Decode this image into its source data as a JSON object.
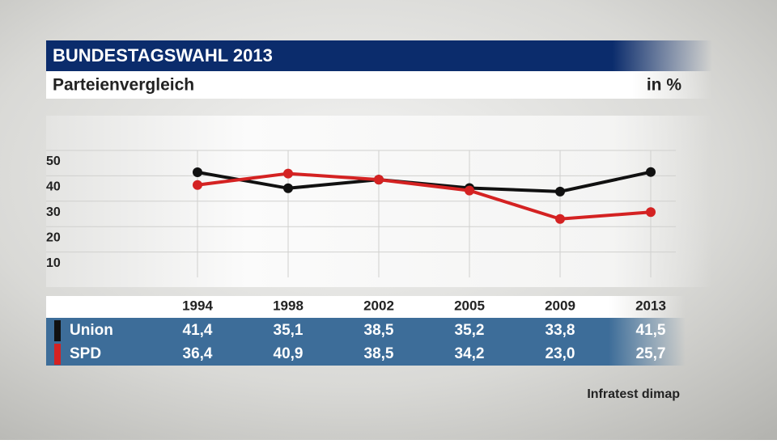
{
  "chart_data": {
    "type": "line",
    "title": "BUNDESTAGSWAHL 2013",
    "subtitle": "Parteienvergleich",
    "unit": "in %",
    "source": "Infratest dimap",
    "categories": [
      "1994",
      "1998",
      "2002",
      "2005",
      "2009",
      "2013"
    ],
    "series": [
      {
        "name": "Union",
        "color": "#111111",
        "values": [
          41.4,
          35.1,
          38.5,
          35.2,
          33.8,
          41.5
        ],
        "value_labels": [
          "41,4",
          "35,1",
          "38,5",
          "35,2",
          "33,8",
          "41,5"
        ]
      },
      {
        "name": "SPD",
        "color": "#d42222",
        "values": [
          36.4,
          40.9,
          38.5,
          34.2,
          23.0,
          25.7
        ],
        "value_labels": [
          "36,4",
          "40,9",
          "38,5",
          "34,2",
          "23,0",
          "25,7"
        ]
      }
    ],
    "ylim": [
      0,
      50
    ],
    "yticks": [
      10,
      20,
      30,
      40,
      50
    ],
    "grid": true
  }
}
